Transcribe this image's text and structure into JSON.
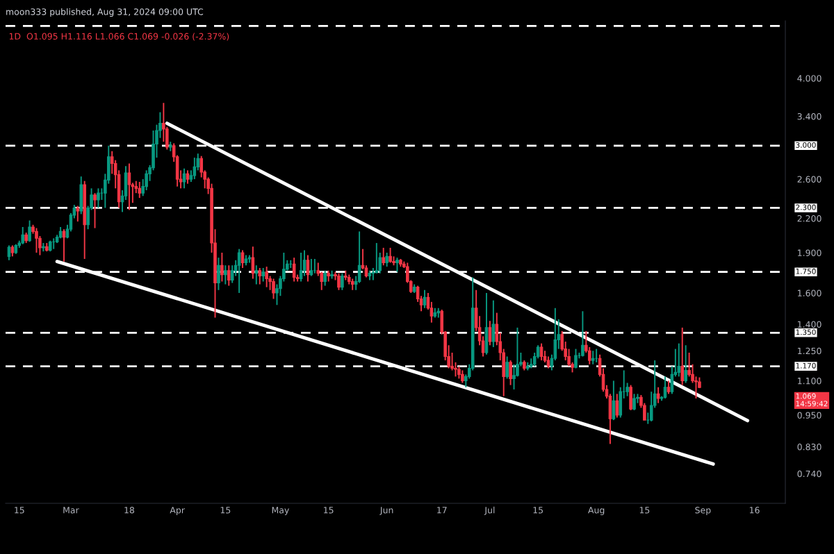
{
  "chart_data": {
    "type": "candlestick",
    "subtitle": "moon333 published, Aug 31, 2024 09:00 UTC",
    "title": "1D  O1.095 H1.116 L1.066 C1.069 -0.026 (-2.37%)",
    "annotations": [
      "1.069",
      "14:59:42"
    ],
    "xlim": [
      "2024-02-11",
      "2024-09-25"
    ],
    "xticks": [
      {
        "value": "2024-02-15",
        "label": "15"
      },
      {
        "value": "2024-03-01",
        "label": "Mar"
      },
      {
        "value": "2024-03-18",
        "label": "18"
      },
      {
        "value": "2024-04-01",
        "label": "Apr"
      },
      {
        "value": "2024-04-15",
        "label": "15"
      },
      {
        "value": "2024-05-01",
        "label": "May"
      },
      {
        "value": "2024-05-15",
        "label": "15"
      },
      {
        "value": "2024-06-01",
        "label": "Jun"
      },
      {
        "value": "2024-06-17",
        "label": "17"
      },
      {
        "value": "2024-07-01",
        "label": "Jul"
      },
      {
        "value": "2024-07-15",
        "label": "15"
      },
      {
        "value": "2024-08-01",
        "label": "Aug"
      },
      {
        "value": "2024-08-15",
        "label": "15"
      },
      {
        "value": "2024-09-01",
        "label": "Sep"
      },
      {
        "value": "2024-09-16",
        "label": "16"
      }
    ],
    "log": true,
    "ylim": [
      0.652,
      5.11
    ],
    "yticks": [
      {
        "value": 0.74,
        "label": "0.740"
      },
      {
        "value": 0.83,
        "label": "0.830"
      },
      {
        "value": 0.95,
        "label": "0.950"
      },
      {
        "value": 1.1,
        "label": "1.100"
      },
      {
        "value": 1.25,
        "label": "1.250"
      },
      {
        "value": 1.4,
        "label": "1.400"
      },
      {
        "value": 1.6,
        "label": "1.600"
      },
      {
        "value": 1.9,
        "label": "1.900"
      },
      {
        "value": 2.2,
        "label": "2.200"
      },
      {
        "value": 2.6,
        "label": "2.600"
      },
      {
        "value": 3.4,
        "label": "3.400"
      },
      {
        "value": 4.0,
        "label": "4.000"
      }
    ],
    "ref_lines": [
      {
        "axis": "y",
        "value": 5.0,
        "label": null,
        "color": "#ffffff",
        "line_style": "dashed"
      },
      {
        "axis": "y",
        "value": 3.0,
        "label": "3.000",
        "color": "#ffffff",
        "line_style": "dashed"
      },
      {
        "axis": "y",
        "value": 2.3,
        "label": "2.300",
        "color": "#ffffff",
        "line_style": "dashed"
      },
      {
        "axis": "y",
        "value": 1.75,
        "label": "1.750",
        "color": "#ffffff",
        "line_style": "dashed"
      },
      {
        "axis": "y",
        "value": 1.35,
        "label": "1.350",
        "color": "#ffffff",
        "line_style": "dashed"
      },
      {
        "axis": "y",
        "value": 1.17,
        "label": "1.170",
        "color": "#ffffff",
        "line_style": "dashed"
      }
    ],
    "series": [
      {
        "x": [
          "2024-02-12",
          "2024-02-13",
          "2024-02-14",
          "2024-02-15",
          "2024-02-16",
          "2024-02-17",
          "2024-02-18",
          "2024-02-19",
          "2024-02-20",
          "2024-02-21",
          "2024-02-22",
          "2024-02-23",
          "2024-02-24",
          "2024-02-25",
          "2024-02-26",
          "2024-02-27",
          "2024-02-28",
          "2024-02-29",
          "2024-03-01",
          "2024-03-02",
          "2024-03-03",
          "2024-03-04",
          "2024-03-05",
          "2024-03-06",
          "2024-03-07",
          "2024-03-08",
          "2024-03-09",
          "2024-03-10",
          "2024-03-11",
          "2024-03-12",
          "2024-03-13",
          "2024-03-14",
          "2024-03-15",
          "2024-03-16",
          "2024-03-17",
          "2024-03-18",
          "2024-03-19",
          "2024-03-20",
          "2024-03-21",
          "2024-03-22",
          "2024-03-23",
          "2024-03-24",
          "2024-03-25",
          "2024-03-26",
          "2024-03-27",
          "2024-03-28",
          "2024-03-29",
          "2024-03-30",
          "2024-03-31",
          "2024-04-01",
          "2024-04-02",
          "2024-04-03",
          "2024-04-04",
          "2024-04-05",
          "2024-04-06",
          "2024-04-07",
          "2024-04-08",
          "2024-04-09",
          "2024-04-10",
          "2024-04-11",
          "2024-04-12",
          "2024-04-13",
          "2024-04-14",
          "2024-04-15",
          "2024-04-16",
          "2024-04-17",
          "2024-04-18",
          "2024-04-19",
          "2024-04-20",
          "2024-04-21",
          "2024-04-22",
          "2024-04-23",
          "2024-04-24",
          "2024-04-25",
          "2024-04-26",
          "2024-04-27",
          "2024-04-28",
          "2024-04-29",
          "2024-04-30",
          "2024-05-01",
          "2024-05-02",
          "2024-05-03",
          "2024-05-04",
          "2024-05-05",
          "2024-05-06",
          "2024-05-07",
          "2024-05-08",
          "2024-05-09",
          "2024-05-10",
          "2024-05-11",
          "2024-05-12",
          "2024-05-13",
          "2024-05-14",
          "2024-05-15",
          "2024-05-16",
          "2024-05-17",
          "2024-05-18",
          "2024-05-19",
          "2024-05-20",
          "2024-05-21",
          "2024-05-22",
          "2024-05-23",
          "2024-05-24",
          "2024-05-25",
          "2024-05-26",
          "2024-05-27",
          "2024-05-28",
          "2024-05-29",
          "2024-05-30",
          "2024-05-31",
          "2024-06-01",
          "2024-06-02",
          "2024-06-03",
          "2024-06-04",
          "2024-06-05",
          "2024-06-06",
          "2024-06-07",
          "2024-06-08",
          "2024-06-09",
          "2024-06-10",
          "2024-06-11",
          "2024-06-12",
          "2024-06-13",
          "2024-06-14",
          "2024-06-15",
          "2024-06-16",
          "2024-06-17",
          "2024-06-18",
          "2024-06-19",
          "2024-06-20",
          "2024-06-21",
          "2024-06-22",
          "2024-06-23",
          "2024-06-24",
          "2024-06-25",
          "2024-06-26",
          "2024-06-27",
          "2024-06-28",
          "2024-06-29",
          "2024-06-30",
          "2024-07-01",
          "2024-07-02",
          "2024-07-03",
          "2024-07-04",
          "2024-07-05",
          "2024-07-06",
          "2024-07-07",
          "2024-07-08",
          "2024-07-09",
          "2024-07-10",
          "2024-07-11",
          "2024-07-12",
          "2024-07-13",
          "2024-07-14",
          "2024-07-15",
          "2024-07-16",
          "2024-07-17",
          "2024-07-18",
          "2024-07-19",
          "2024-07-20",
          "2024-07-21",
          "2024-07-22",
          "2024-07-23",
          "2024-07-24",
          "2024-07-25",
          "2024-07-26",
          "2024-07-27",
          "2024-07-28",
          "2024-07-29",
          "2024-07-30",
          "2024-07-31",
          "2024-08-01",
          "2024-08-02",
          "2024-08-03",
          "2024-08-04",
          "2024-08-05",
          "2024-08-06",
          "2024-08-07",
          "2024-08-08",
          "2024-08-09",
          "2024-08-10",
          "2024-08-11",
          "2024-08-12",
          "2024-08-13",
          "2024-08-14",
          "2024-08-15",
          "2024-08-16",
          "2024-08-17",
          "2024-08-18",
          "2024-08-19",
          "2024-08-20",
          "2024-08-21",
          "2024-08-22",
          "2024-08-23",
          "2024-08-24",
          "2024-08-25",
          "2024-08-26",
          "2024-08-27",
          "2024-08-28",
          "2024-08-29",
          "2024-08-30",
          "2024-08-31"
        ],
        "ohlc": [
          [
            1.87,
            1.96,
            1.84,
            1.945
          ],
          [
            1.945,
            1.96,
            1.87,
            1.9
          ],
          [
            1.9,
            1.97,
            1.89,
            1.96
          ],
          [
            1.96,
            2.0,
            1.94,
            1.98
          ],
          [
            1.98,
            2.12,
            1.97,
            2.05
          ],
          [
            2.05,
            2.07,
            1.98,
            2.0
          ],
          [
            2.0,
            2.18,
            1.99,
            2.12
          ],
          [
            2.12,
            2.14,
            2.06,
            2.08
          ],
          [
            2.08,
            2.11,
            1.9,
            2.02
          ],
          [
            2.02,
            2.04,
            1.88,
            1.94
          ],
          [
            1.94,
            1.98,
            1.91,
            1.95
          ],
          [
            1.95,
            1.98,
            1.91,
            1.92
          ],
          [
            1.92,
            2.0,
            1.91,
            1.99
          ],
          [
            1.99,
            2.02,
            1.93,
            1.99
          ],
          [
            1.99,
            2.05,
            1.98,
            2.03
          ],
          [
            2.03,
            2.12,
            2.02,
            2.08
          ],
          [
            2.08,
            2.1,
            1.83,
            2.03
          ],
          [
            2.03,
            2.14,
            2.02,
            2.1
          ],
          [
            2.1,
            2.25,
            2.08,
            2.23
          ],
          [
            2.23,
            2.33,
            2.2,
            2.3
          ],
          [
            2.3,
            2.32,
            2.17,
            2.27
          ],
          [
            2.27,
            2.63,
            2.24,
            2.54
          ],
          [
            2.54,
            2.58,
            1.85,
            2.14
          ],
          [
            2.14,
            2.32,
            2.1,
            2.3
          ],
          [
            2.3,
            2.5,
            2.28,
            2.43
          ],
          [
            2.43,
            2.45,
            2.11,
            2.38
          ],
          [
            2.38,
            2.5,
            2.3,
            2.45
          ],
          [
            2.45,
            2.5,
            2.38,
            2.45
          ],
          [
            2.45,
            2.66,
            2.3,
            2.59
          ],
          [
            2.59,
            3.0,
            2.55,
            2.86
          ],
          [
            2.86,
            2.93,
            2.66,
            2.78
          ],
          [
            2.78,
            2.82,
            2.5,
            2.65
          ],
          [
            2.65,
            2.7,
            2.3,
            2.36
          ],
          [
            2.36,
            2.48,
            2.26,
            2.42
          ],
          [
            2.42,
            2.75,
            2.38,
            2.67
          ],
          [
            2.67,
            2.78,
            2.28,
            2.54
          ],
          [
            2.54,
            2.56,
            2.35,
            2.52
          ],
          [
            2.52,
            2.58,
            2.45,
            2.5
          ],
          [
            2.5,
            2.57,
            2.4,
            2.45
          ],
          [
            2.45,
            2.6,
            2.42,
            2.52
          ],
          [
            2.52,
            2.7,
            2.48,
            2.66
          ],
          [
            2.66,
            2.76,
            2.58,
            2.73
          ],
          [
            2.73,
            3.2,
            2.7,
            3.02
          ],
          [
            3.02,
            3.28,
            2.85,
            3.2
          ],
          [
            3.2,
            3.46,
            3.1,
            3.3
          ],
          [
            3.3,
            3.6,
            3.05,
            3.22
          ],
          [
            3.22,
            3.25,
            2.95,
            2.98
          ],
          [
            2.98,
            3.05,
            2.93,
            3.0
          ],
          [
            3.0,
            3.03,
            2.8,
            2.86
          ],
          [
            2.86,
            2.88,
            2.52,
            2.6
          ],
          [
            2.6,
            2.7,
            2.5,
            2.57
          ],
          [
            2.57,
            2.72,
            2.5,
            2.66
          ],
          [
            2.66,
            2.7,
            2.55,
            2.6
          ],
          [
            2.6,
            2.7,
            2.57,
            2.64
          ],
          [
            2.64,
            2.85,
            2.6,
            2.74
          ],
          [
            2.74,
            2.9,
            2.7,
            2.84
          ],
          [
            2.84,
            2.87,
            2.62,
            2.68
          ],
          [
            2.68,
            2.7,
            2.5,
            2.6
          ],
          [
            2.6,
            2.62,
            2.44,
            2.5
          ],
          [
            2.5,
            2.55,
            1.9,
            1.98
          ],
          [
            1.98,
            2.1,
            1.44,
            1.67
          ],
          [
            1.67,
            1.86,
            1.62,
            1.8
          ],
          [
            1.8,
            1.9,
            1.68,
            1.73
          ],
          [
            1.73,
            1.8,
            1.66,
            1.76
          ],
          [
            1.76,
            1.8,
            1.65,
            1.69
          ],
          [
            1.69,
            1.8,
            1.67,
            1.76
          ],
          [
            1.76,
            1.84,
            1.72,
            1.8
          ],
          [
            1.8,
            1.93,
            1.6,
            1.9
          ],
          [
            1.9,
            1.92,
            1.78,
            1.82
          ],
          [
            1.82,
            1.88,
            1.8,
            1.85
          ],
          [
            1.85,
            1.88,
            1.82,
            1.86
          ],
          [
            1.86,
            1.95,
            1.7,
            1.74
          ],
          [
            1.74,
            1.8,
            1.66,
            1.76
          ],
          [
            1.76,
            1.78,
            1.66,
            1.72
          ],
          [
            1.72,
            1.78,
            1.68,
            1.75
          ],
          [
            1.75,
            1.79,
            1.64,
            1.7
          ],
          [
            1.7,
            1.72,
            1.62,
            1.68
          ],
          [
            1.68,
            1.7,
            1.56,
            1.6
          ],
          [
            1.6,
            1.66,
            1.52,
            1.63
          ],
          [
            1.63,
            1.72,
            1.58,
            1.7
          ],
          [
            1.7,
            1.9,
            1.68,
            1.77
          ],
          [
            1.77,
            1.84,
            1.76,
            1.81
          ],
          [
            1.81,
            1.84,
            1.78,
            1.81
          ],
          [
            1.81,
            1.86,
            1.68,
            1.71
          ],
          [
            1.71,
            1.73,
            1.68,
            1.7
          ],
          [
            1.7,
            1.9,
            1.68,
            1.76
          ],
          [
            1.76,
            1.92,
            1.72,
            1.84
          ],
          [
            1.84,
            1.88,
            1.68,
            1.73
          ],
          [
            1.73,
            1.85,
            1.72,
            1.76
          ],
          [
            1.76,
            1.85,
            1.74,
            1.76
          ],
          [
            1.76,
            1.82,
            1.72,
            1.74
          ],
          [
            1.74,
            1.75,
            1.62,
            1.68
          ],
          [
            1.68,
            1.76,
            1.65,
            1.74
          ],
          [
            1.74,
            1.76,
            1.68,
            1.72
          ],
          [
            1.72,
            1.76,
            1.7,
            1.73
          ],
          [
            1.73,
            1.75,
            1.69,
            1.72
          ],
          [
            1.72,
            1.74,
            1.62,
            1.64
          ],
          [
            1.64,
            1.74,
            1.62,
            1.72
          ],
          [
            1.72,
            1.76,
            1.69,
            1.71
          ],
          [
            1.71,
            1.73,
            1.66,
            1.68
          ],
          [
            1.68,
            1.7,
            1.62,
            1.66
          ],
          [
            1.66,
            1.72,
            1.62,
            1.68
          ],
          [
            1.68,
            2.08,
            1.67,
            1.8
          ],
          [
            1.8,
            1.93,
            1.77,
            1.78
          ],
          [
            1.78,
            1.8,
            1.71,
            1.72
          ],
          [
            1.72,
            1.76,
            1.69,
            1.74
          ],
          [
            1.74,
            1.78,
            1.69,
            1.745
          ],
          [
            1.745,
            1.98,
            1.74,
            1.76
          ],
          [
            1.76,
            1.9,
            1.74,
            1.86
          ],
          [
            1.86,
            1.94,
            1.8,
            1.82
          ],
          [
            1.82,
            1.9,
            1.79,
            1.87
          ],
          [
            1.87,
            1.94,
            1.82,
            1.83
          ],
          [
            1.83,
            1.87,
            1.8,
            1.82
          ],
          [
            1.82,
            1.86,
            1.75,
            1.84
          ],
          [
            1.84,
            1.85,
            1.79,
            1.81
          ],
          [
            1.81,
            1.83,
            1.78,
            1.79
          ],
          [
            1.79,
            1.82,
            1.67,
            1.68
          ],
          [
            1.68,
            1.69,
            1.6,
            1.61
          ],
          [
            1.61,
            1.66,
            1.6,
            1.64
          ],
          [
            1.64,
            1.65,
            1.54,
            1.56
          ],
          [
            1.56,
            1.58,
            1.48,
            1.52
          ],
          [
            1.52,
            1.62,
            1.5,
            1.57
          ],
          [
            1.57,
            1.6,
            1.49,
            1.5
          ],
          [
            1.5,
            1.54,
            1.41,
            1.45
          ],
          [
            1.45,
            1.5,
            1.44,
            1.47
          ],
          [
            1.47,
            1.5,
            1.44,
            1.48
          ],
          [
            1.48,
            1.49,
            1.34,
            1.354
          ],
          [
            1.354,
            1.36,
            1.2,
            1.22
          ],
          [
            1.22,
            1.28,
            1.16,
            1.17
          ],
          [
            1.17,
            1.24,
            1.15,
            1.16
          ],
          [
            1.16,
            1.19,
            1.12,
            1.155
          ],
          [
            1.155,
            1.17,
            1.11,
            1.13
          ],
          [
            1.13,
            1.15,
            1.09,
            1.1
          ],
          [
            1.1,
            1.13,
            1.07,
            1.12
          ],
          [
            1.12,
            1.18,
            1.11,
            1.16
          ],
          [
            1.16,
            1.71,
            1.15,
            1.5
          ],
          [
            1.5,
            1.62,
            1.36,
            1.38
          ],
          [
            1.38,
            1.45,
            1.28,
            1.304
          ],
          [
            1.304,
            1.33,
            1.22,
            1.24
          ],
          [
            1.24,
            1.6,
            1.23,
            1.38
          ],
          [
            1.38,
            1.42,
            1.28,
            1.3
          ],
          [
            1.3,
            1.55,
            1.27,
            1.4
          ],
          [
            1.4,
            1.47,
            1.28,
            1.3
          ],
          [
            1.3,
            1.35,
            1.2,
            1.24
          ],
          [
            1.24,
            1.26,
            1.03,
            1.12
          ],
          [
            1.12,
            1.22,
            1.11,
            1.19
          ],
          [
            1.19,
            1.2,
            1.08,
            1.11
          ],
          [
            1.11,
            1.18,
            1.06,
            1.125
          ],
          [
            1.125,
            1.38,
            1.12,
            1.18
          ],
          [
            1.18,
            1.24,
            1.17,
            1.19
          ],
          [
            1.19,
            1.2,
            1.15,
            1.16
          ],
          [
            1.16,
            1.19,
            1.15,
            1.17
          ],
          [
            1.17,
            1.21,
            1.16,
            1.18
          ],
          [
            1.18,
            1.24,
            1.17,
            1.22
          ],
          [
            1.22,
            1.28,
            1.21,
            1.27
          ],
          [
            1.27,
            1.29,
            1.2,
            1.22
          ],
          [
            1.22,
            1.25,
            1.19,
            1.2
          ],
          [
            1.2,
            1.22,
            1.16,
            1.17
          ],
          [
            1.17,
            1.23,
            1.15,
            1.21
          ],
          [
            1.21,
            1.5,
            1.2,
            1.31
          ],
          [
            1.31,
            1.43,
            1.26,
            1.34
          ],
          [
            1.34,
            1.36,
            1.25,
            1.26
          ],
          [
            1.26,
            1.3,
            1.2,
            1.22
          ],
          [
            1.22,
            1.26,
            1.17,
            1.18
          ],
          [
            1.18,
            1.19,
            1.14,
            1.165
          ],
          [
            1.165,
            1.26,
            1.16,
            1.225
          ],
          [
            1.225,
            1.24,
            1.21,
            1.225
          ],
          [
            1.225,
            1.48,
            1.22,
            1.28
          ],
          [
            1.28,
            1.36,
            1.24,
            1.25
          ],
          [
            1.25,
            1.27,
            1.18,
            1.2
          ],
          [
            1.2,
            1.25,
            1.18,
            1.21
          ],
          [
            1.21,
            1.26,
            1.19,
            1.21
          ],
          [
            1.21,
            1.23,
            1.12,
            1.13
          ],
          [
            1.13,
            1.16,
            1.05,
            1.06
          ],
          [
            1.06,
            1.08,
            1.02,
            1.03
          ],
          [
            1.03,
            1.04,
            0.84,
            0.935
          ],
          [
            0.935,
            1.1,
            0.93,
            1.01
          ],
          [
            1.01,
            1.04,
            0.94,
            0.95
          ],
          [
            0.95,
            1.07,
            0.94,
            1.05
          ],
          [
            1.05,
            1.15,
            1.02,
            1.05
          ],
          [
            1.05,
            1.09,
            1.03,
            1.07
          ],
          [
            1.07,
            1.08,
            0.97,
            0.975
          ],
          [
            0.975,
            1.04,
            0.97,
            1.02
          ],
          [
            1.02,
            1.04,
            1.0,
            1.025
          ],
          [
            1.025,
            1.035,
            0.98,
            0.99
          ],
          [
            0.99,
            1.0,
            0.93,
            0.93
          ],
          [
            0.93,
            0.96,
            0.915,
            0.93
          ],
          [
            0.93,
            1.05,
            0.925,
            0.99
          ],
          [
            0.99,
            1.2,
            0.98,
            1.04
          ],
          [
            1.04,
            1.07,
            1.0,
            1.02
          ],
          [
            1.02,
            1.03,
            1.01,
            1.025
          ],
          [
            1.025,
            1.12,
            1.02,
            1.07
          ],
          [
            1.07,
            1.1,
            1.04,
            1.05
          ],
          [
            1.05,
            1.17,
            1.04,
            1.13
          ],
          [
            1.13,
            1.26,
            1.12,
            1.14
          ],
          [
            1.14,
            1.29,
            1.12,
            1.17
          ],
          [
            1.17,
            1.38,
            1.08,
            1.1
          ],
          [
            1.1,
            1.28,
            1.09,
            1.15
          ],
          [
            1.15,
            1.24,
            1.12,
            1.13
          ],
          [
            1.13,
            1.18,
            1.09,
            1.1
          ],
          [
            1.1,
            1.12,
            1.02,
            1.095
          ],
          [
            1.095,
            1.116,
            1.066,
            1.069
          ]
        ]
      },
      {
        "type": "line",
        "color": "#ffffff",
        "x": [
          "2024-03-29",
          "2024-09-14"
        ],
        "values": [
          3.3,
          0.928
        ]
      },
      {
        "type": "line",
        "color": "#ffffff",
        "x": [
          "2024-02-26",
          "2024-09-04"
        ],
        "values": [
          1.83,
          0.771
        ]
      }
    ]
  }
}
